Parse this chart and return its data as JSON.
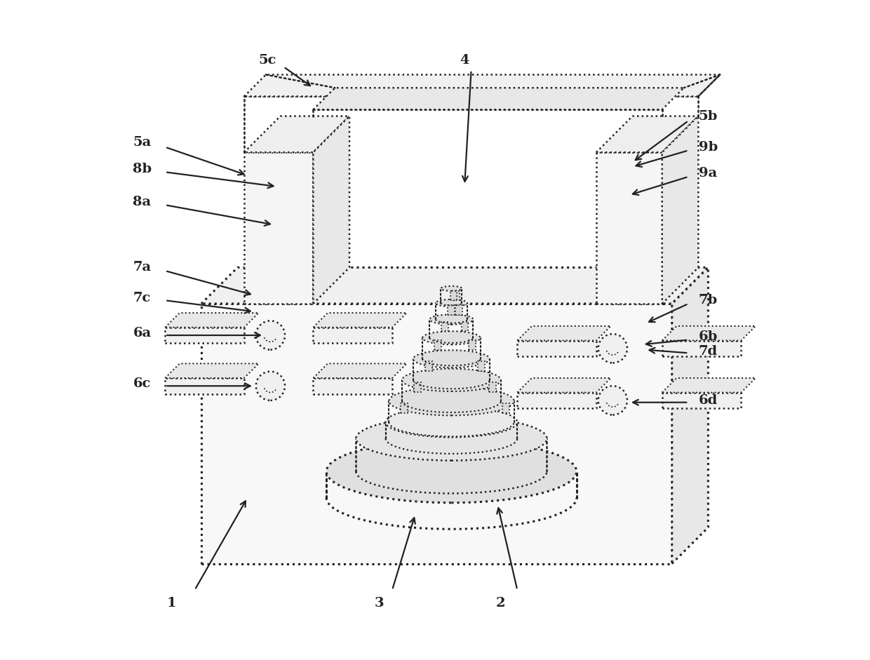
{
  "bg_color": "#ffffff",
  "line_color": "#222222",
  "lw": 1.8,
  "lw_thick": 2.2,
  "figsize": [
    12.4,
    9.41
  ],
  "dpi": 100,
  "arrow_configs": {
    "1": {
      "lp": [
        0.1,
        0.085
      ],
      "s": [
        0.135,
        0.105
      ],
      "e": [
        0.215,
        0.245
      ]
    },
    "2": {
      "lp": [
        0.6,
        0.085
      ],
      "s": [
        0.625,
        0.105
      ],
      "e": [
        0.595,
        0.235
      ]
    },
    "3": {
      "lp": [
        0.415,
        0.085
      ],
      "s": [
        0.435,
        0.105
      ],
      "e": [
        0.47,
        0.22
      ]
    },
    "4": {
      "lp": [
        0.545,
        0.91
      ],
      "s": [
        0.555,
        0.895
      ],
      "e": [
        0.545,
        0.72
      ]
    },
    "5a": {
      "lp": [
        0.055,
        0.785
      ],
      "s": [
        0.09,
        0.778
      ],
      "e": [
        0.215,
        0.735
      ]
    },
    "5b": {
      "lp": [
        0.915,
        0.825
      ],
      "s": [
        0.885,
        0.818
      ],
      "e": [
        0.8,
        0.755
      ]
    },
    "5c": {
      "lp": [
        0.245,
        0.91
      ],
      "s": [
        0.27,
        0.9
      ],
      "e": [
        0.315,
        0.868
      ]
    },
    "6a": {
      "lp": [
        0.055,
        0.495
      ],
      "s": [
        0.09,
        0.492
      ],
      "e": [
        0.24,
        0.492
      ]
    },
    "6b": {
      "lp": [
        0.915,
        0.49
      ],
      "s": [
        0.885,
        0.485
      ],
      "e": [
        0.815,
        0.478
      ]
    },
    "6c": {
      "lp": [
        0.055,
        0.418
      ],
      "s": [
        0.09,
        0.415
      ],
      "e": [
        0.225,
        0.415
      ]
    },
    "6d": {
      "lp": [
        0.915,
        0.393
      ],
      "s": [
        0.885,
        0.39
      ],
      "e": [
        0.795,
        0.39
      ]
    },
    "7a": {
      "lp": [
        0.055,
        0.595
      ],
      "s": [
        0.09,
        0.59
      ],
      "e": [
        0.225,
        0.553
      ]
    },
    "7b": {
      "lp": [
        0.915,
        0.545
      ],
      "s": [
        0.885,
        0.54
      ],
      "e": [
        0.82,
        0.51
      ]
    },
    "7c": {
      "lp": [
        0.055,
        0.548
      ],
      "s": [
        0.09,
        0.545
      ],
      "e": [
        0.225,
        0.528
      ]
    },
    "7d": {
      "lp": [
        0.915,
        0.468
      ],
      "s": [
        0.885,
        0.465
      ],
      "e": [
        0.82,
        0.47
      ]
    },
    "8a": {
      "lp": [
        0.055,
        0.695
      ],
      "s": [
        0.09,
        0.69
      ],
      "e": [
        0.255,
        0.66
      ]
    },
    "8b": {
      "lp": [
        0.055,
        0.745
      ],
      "s": [
        0.09,
        0.74
      ],
      "e": [
        0.26,
        0.718
      ]
    },
    "9a": {
      "lp": [
        0.915,
        0.738
      ],
      "s": [
        0.885,
        0.733
      ],
      "e": [
        0.795,
        0.705
      ]
    },
    "9b": {
      "lp": [
        0.915,
        0.778
      ],
      "s": [
        0.885,
        0.773
      ],
      "e": [
        0.8,
        0.748
      ]
    }
  }
}
